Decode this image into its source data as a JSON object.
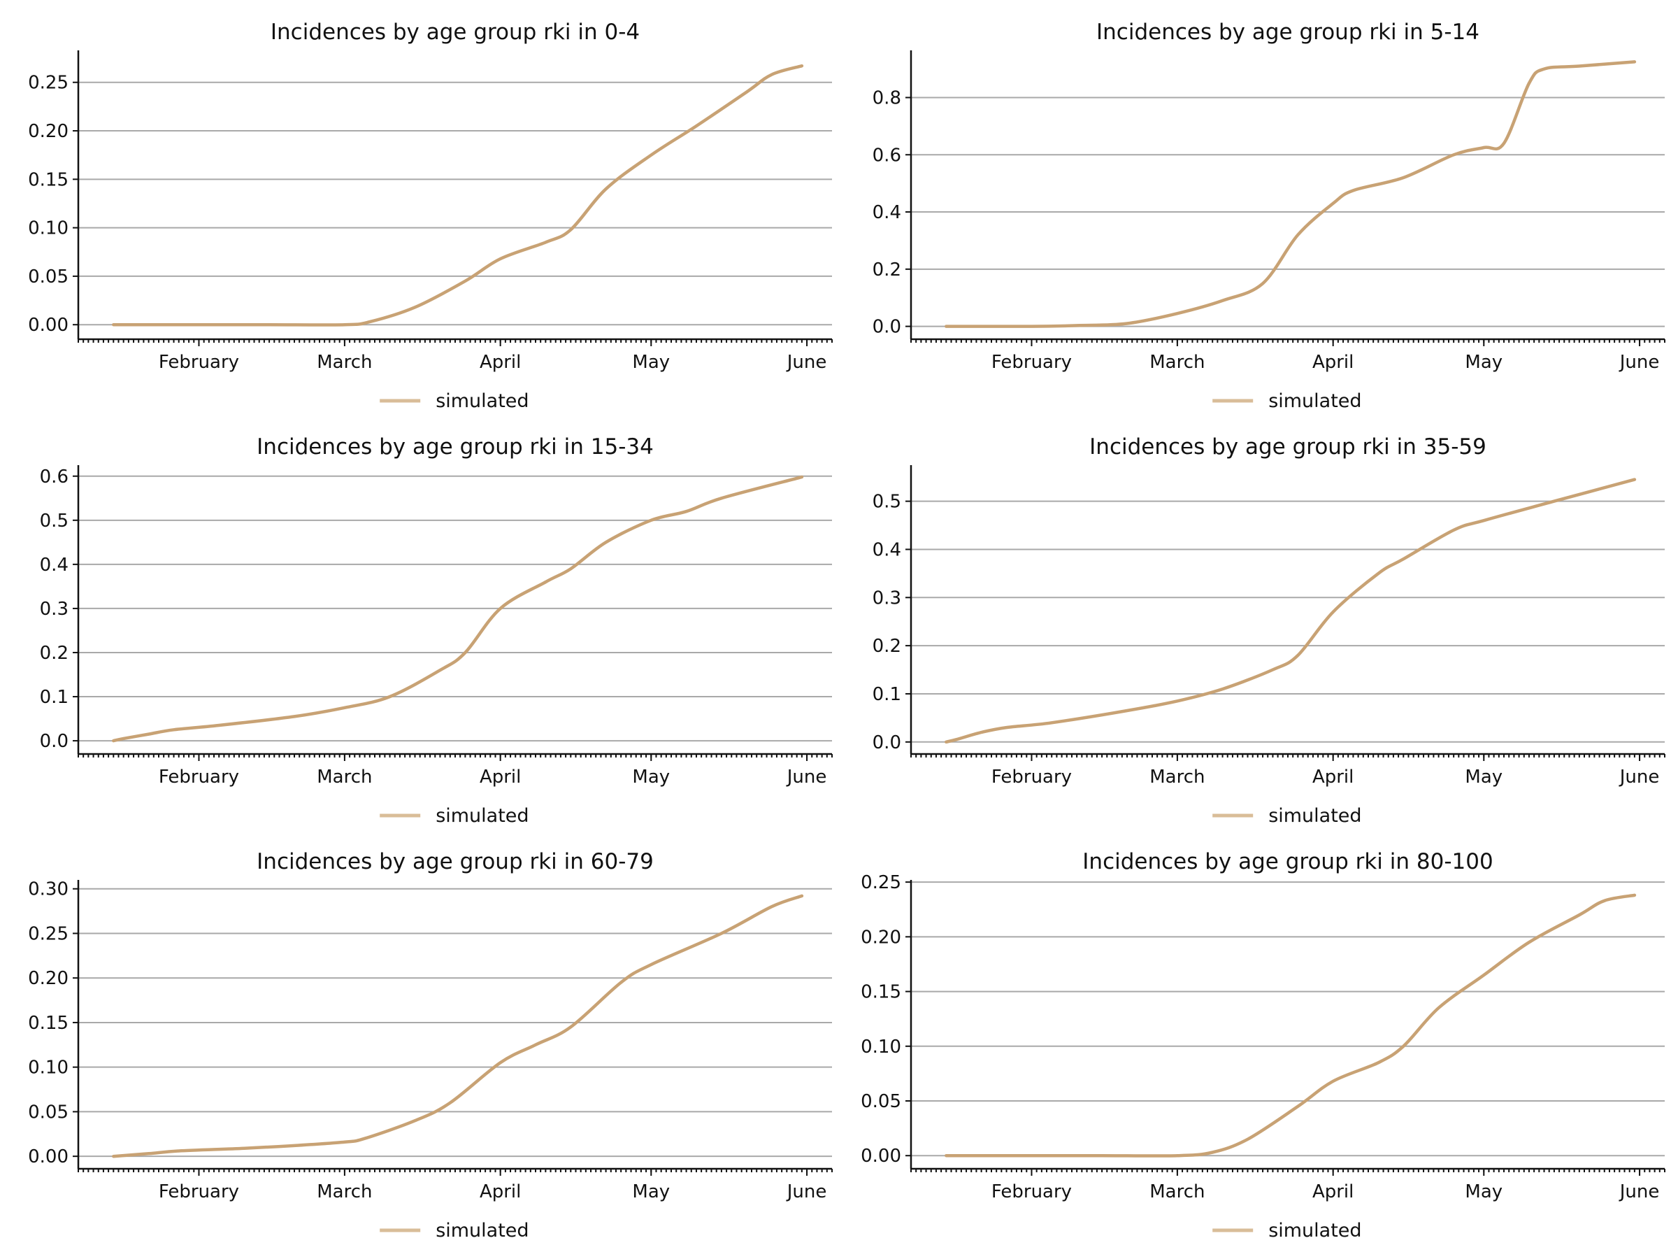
{
  "colors": {
    "series": "#c8a274",
    "legend": "#d9bd98"
  },
  "chart_data": [
    {
      "type": "line",
      "title": "Incidences by age group rki in 0-4",
      "x_ticks": [
        "February",
        "March",
        "April",
        "May",
        "June"
      ],
      "y_ticks": [
        "0.00",
        "0.05",
        "0.10",
        "0.15",
        "0.20",
        "0.25"
      ],
      "xlim": [
        "2020-01-08",
        "2020-06-06"
      ],
      "ylim": [
        -0.015,
        0.283
      ],
      "series": [
        {
          "name": "simulated",
          "x": [
            "2020-01-15",
            "2020-02-01",
            "2020-02-15",
            "2020-03-01",
            "2020-03-06",
            "2020-03-15",
            "2020-03-25",
            "2020-04-01",
            "2020-04-10",
            "2020-04-15",
            "2020-04-22",
            "2020-05-01",
            "2020-05-10",
            "2020-05-20",
            "2020-05-25",
            "2020-05-31"
          ],
          "y": [
            0,
            0,
            0,
            0,
            0.003,
            0.018,
            0.045,
            0.068,
            0.085,
            0.098,
            0.14,
            0.175,
            0.205,
            0.24,
            0.258,
            0.267
          ]
        }
      ],
      "legend": "below"
    },
    {
      "type": "line",
      "title": "Incidences by age group rki in 5-14",
      "x_ticks": [
        "February",
        "March",
        "April",
        "May",
        "June"
      ],
      "y_ticks": [
        "0.0",
        "0.2",
        "0.4",
        "0.6",
        "0.8"
      ],
      "xlim": [
        "2020-01-08",
        "2020-06-06"
      ],
      "ylim": [
        -0.045,
        0.965
      ],
      "series": [
        {
          "name": "simulated",
          "x": [
            "2020-01-15",
            "2020-02-01",
            "2020-02-10",
            "2020-02-20",
            "2020-03-01",
            "2020-03-10",
            "2020-03-18",
            "2020-03-25",
            "2020-04-01",
            "2020-04-05",
            "2020-04-15",
            "2020-04-25",
            "2020-05-01",
            "2020-05-05",
            "2020-05-10",
            "2020-05-13",
            "2020-05-20",
            "2020-05-31"
          ],
          "y": [
            0,
            0,
            0.003,
            0.01,
            0.045,
            0.09,
            0.15,
            0.32,
            0.43,
            0.475,
            0.52,
            0.6,
            0.625,
            0.64,
            0.85,
            0.9,
            0.91,
            0.925
          ]
        }
      ],
      "legend": "below"
    },
    {
      "type": "line",
      "title": "Incidences by age group rki in 15-34",
      "x_ticks": [
        "February",
        "March",
        "April",
        "May",
        "June"
      ],
      "y_ticks": [
        "0.0",
        "0.1",
        "0.2",
        "0.3",
        "0.4",
        "0.5",
        "0.6"
      ],
      "xlim": [
        "2020-01-08",
        "2020-06-06"
      ],
      "ylim": [
        -0.03,
        0.625
      ],
      "series": [
        {
          "name": "simulated",
          "x": [
            "2020-01-15",
            "2020-01-17",
            "2020-01-22",
            "2020-01-27",
            "2020-02-05",
            "2020-02-20",
            "2020-03-01",
            "2020-03-10",
            "2020-03-20",
            "2020-03-25",
            "2020-04-01",
            "2020-04-10",
            "2020-04-15",
            "2020-04-22",
            "2020-05-01",
            "2020-05-08",
            "2020-05-15",
            "2020-05-31"
          ],
          "y": [
            0,
            0.005,
            0.015,
            0.025,
            0.035,
            0.055,
            0.075,
            0.1,
            0.16,
            0.2,
            0.3,
            0.36,
            0.39,
            0.45,
            0.5,
            0.52,
            0.55,
            0.598
          ]
        }
      ],
      "legend": "below"
    },
    {
      "type": "line",
      "title": "Incidences by age group rki in 35-59",
      "x_ticks": [
        "February",
        "March",
        "April",
        "May",
        "June"
      ],
      "y_ticks": [
        "0.0",
        "0.1",
        "0.2",
        "0.3",
        "0.4",
        "0.5"
      ],
      "xlim": [
        "2020-01-08",
        "2020-06-06"
      ],
      "ylim": [
        -0.025,
        0.575
      ],
      "series": [
        {
          "name": "simulated",
          "x": [
            "2020-01-15",
            "2020-01-17",
            "2020-01-22",
            "2020-01-27",
            "2020-02-05",
            "2020-02-20",
            "2020-03-01",
            "2020-03-10",
            "2020-03-20",
            "2020-03-25",
            "2020-04-01",
            "2020-04-10",
            "2020-04-15",
            "2020-04-25",
            "2020-05-01",
            "2020-05-15",
            "2020-05-31"
          ],
          "y": [
            0,
            0.005,
            0.02,
            0.03,
            0.04,
            0.065,
            0.085,
            0.11,
            0.15,
            0.18,
            0.27,
            0.35,
            0.38,
            0.44,
            0.46,
            0.5,
            0.545
          ]
        }
      ],
      "legend": "below"
    },
    {
      "type": "line",
      "title": "Incidences by age group rki in 60-79",
      "x_ticks": [
        "February",
        "March",
        "April",
        "May",
        "June"
      ],
      "y_ticks": [
        "0.00",
        "0.05",
        "0.10",
        "0.15",
        "0.20",
        "0.25",
        "0.30"
      ],
      "xlim": [
        "2020-01-08",
        "2020-06-06"
      ],
      "ylim": [
        -0.014,
        0.31
      ],
      "series": [
        {
          "name": "simulated",
          "x": [
            "2020-01-15",
            "2020-01-22",
            "2020-01-28",
            "2020-02-10",
            "2020-02-20",
            "2020-03-01",
            "2020-03-05",
            "2020-03-15",
            "2020-03-22",
            "2020-04-01",
            "2020-04-08",
            "2020-04-15",
            "2020-04-25",
            "2020-05-01",
            "2020-05-15",
            "2020-05-25",
            "2020-05-31"
          ],
          "y": [
            0,
            0.003,
            0.006,
            0.009,
            0.012,
            0.016,
            0.02,
            0.04,
            0.06,
            0.105,
            0.125,
            0.145,
            0.195,
            0.215,
            0.25,
            0.28,
            0.292
          ]
        }
      ],
      "legend": "below"
    },
    {
      "type": "line",
      "title": "Incidences by age group rki in 80-100",
      "x_ticks": [
        "February",
        "March",
        "April",
        "May",
        "June"
      ],
      "y_ticks": [
        "0.00",
        "0.05",
        "0.10",
        "0.15",
        "0.20",
        "0.25"
      ],
      "xlim": [
        "2020-01-08",
        "2020-06-06"
      ],
      "ylim": [
        -0.012,
        0.252
      ],
      "series": [
        {
          "name": "simulated",
          "x": [
            "2020-01-15",
            "2020-02-01",
            "2020-02-15",
            "2020-03-01",
            "2020-03-08",
            "2020-03-15",
            "2020-03-25",
            "2020-04-01",
            "2020-04-10",
            "2020-04-15",
            "2020-04-22",
            "2020-05-01",
            "2020-05-10",
            "2020-05-20",
            "2020-05-25",
            "2020-05-31"
          ],
          "y": [
            0,
            0,
            0,
            0,
            0.003,
            0.015,
            0.045,
            0.068,
            0.085,
            0.1,
            0.135,
            0.165,
            0.195,
            0.22,
            0.233,
            0.238
          ]
        }
      ],
      "legend": "below"
    }
  ]
}
